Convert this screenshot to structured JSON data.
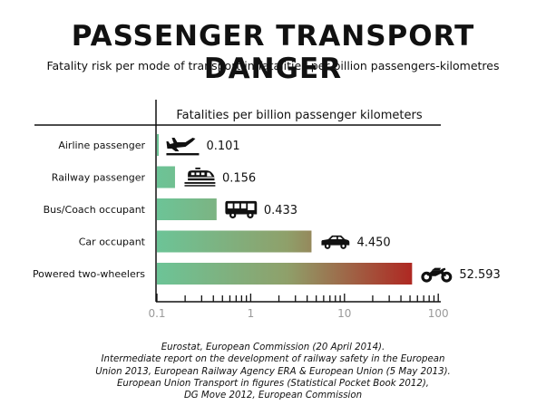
{
  "title": "PASSENGER TRANSPORT DANGER",
  "subtitle": "Fatality risk per mode of transport in fatalities per billion passengers-kilometres",
  "chart_data": {
    "type": "bar",
    "orientation": "horizontal",
    "title": "Fatalities per billion passenger kilometers",
    "xscale": "log",
    "xlim": [
      0.1,
      100
    ],
    "xticks": [
      "0.1",
      "1",
      "10",
      "100"
    ],
    "categories": [
      "Airline passenger",
      "Railway passenger",
      "Bus/Coach occupant",
      "Car occupant",
      "Powered two-wheelers"
    ],
    "values": [
      0.101,
      0.156,
      0.433,
      4.45,
      52.593
    ],
    "value_labels": [
      "0.101",
      "0.156",
      "0.433",
      "4.450",
      "52.593"
    ],
    "icons": [
      "airplane-icon",
      "train-icon",
      "bus-icon",
      "car-icon",
      "motorcycle-icon"
    ],
    "gradient_colors": [
      "#6cc497",
      "#b0231f"
    ],
    "grid": false
  },
  "source_lines": [
    "Eurostat, European Commission (20 April 2014).",
    "Intermediate report on the development of railway safety in the European",
    "Union 2013, European Railway Agency ERA & European Union (5 May 2013).",
    "European Union Transport in figures (Statistical Pocket Book 2012),",
    "DG Move 2012, European Commission"
  ]
}
